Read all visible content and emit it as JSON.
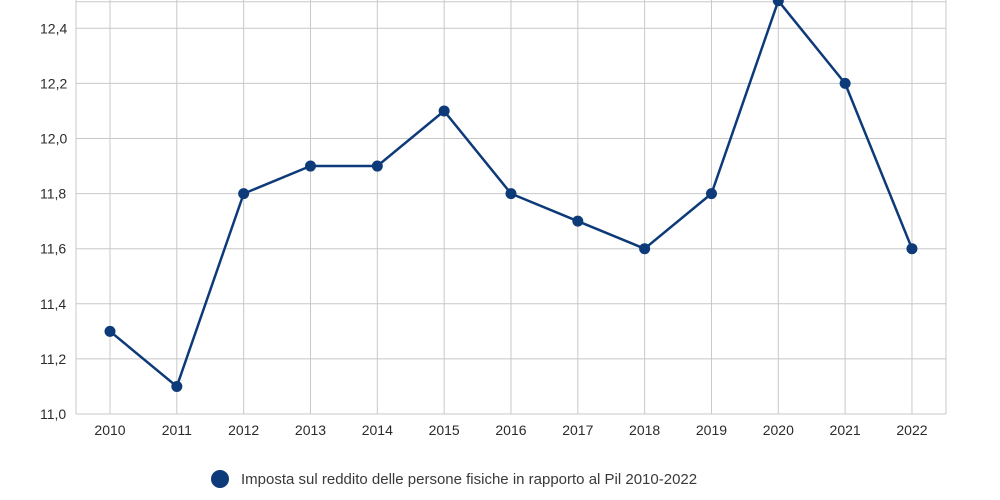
{
  "chart_data": {
    "type": "line",
    "categories": [
      "2010",
      "2011",
      "2012",
      "2013",
      "2014",
      "2015",
      "2016",
      "2017",
      "2018",
      "2019",
      "2020",
      "2021",
      "2022"
    ],
    "series": [
      {
        "name": "Imposta sul reddito delle persone fisiche in rapporto al Pil 2010-2022",
        "values": [
          11.3,
          11.1,
          11.8,
          11.9,
          11.9,
          12.1,
          11.8,
          11.7,
          11.6,
          11.8,
          12.5,
          12.2,
          11.6
        ],
        "color": "#0d3a78"
      }
    ],
    "y_ticks": [
      "11,0",
      "11,2",
      "11,4",
      "11,6",
      "11,8",
      "12,0",
      "12,2",
      "12,4"
    ],
    "ylim": [
      11.0,
      12.5
    ],
    "grid": true,
    "legend_position": "bottom-center",
    "colors": {
      "line": "#0d3a78",
      "grid": "#c8c8c8"
    }
  }
}
